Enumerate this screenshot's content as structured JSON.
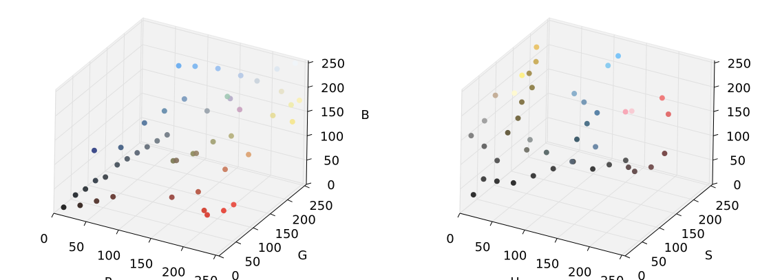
{
  "chart_data": [
    {
      "type": "scatter3d",
      "xlabel": "R",
      "ylabel": "G",
      "zlabel": "B",
      "xlim": [
        0,
        255
      ],
      "ylim": [
        0,
        255
      ],
      "zlim": [
        0,
        255
      ],
      "xticks": [
        0,
        50,
        100,
        150,
        200,
        250
      ],
      "yticks": [
        0,
        50,
        100,
        150,
        200,
        250
      ],
      "zticks": [
        0,
        50,
        100,
        150,
        200,
        250
      ],
      "grid": true,
      "x": [
        10,
        20,
        30,
        40,
        50,
        60,
        70,
        80,
        90,
        100,
        30,
        50,
        70,
        60,
        80,
        100,
        120,
        40,
        120,
        140,
        160,
        180,
        150,
        130,
        110,
        150,
        200,
        210,
        230,
        240,
        180,
        150,
        200,
        220,
        220,
        240,
        250,
        245,
        230,
        200,
        180,
        150,
        120,
        100,
        240,
        220,
        180,
        200,
        160
      ],
      "y": [
        10,
        25,
        35,
        45,
        55,
        70,
        80,
        90,
        100,
        110,
        20,
        30,
        40,
        80,
        110,
        130,
        150,
        40,
        120,
        140,
        160,
        175,
        130,
        110,
        120,
        160,
        60,
        50,
        60,
        70,
        80,
        60,
        120,
        150,
        220,
        235,
        240,
        230,
        225,
        210,
        200,
        190,
        180,
        170,
        245,
        230,
        170,
        160,
        200
      ],
      "z": [
        10,
        30,
        40,
        55,
        60,
        80,
        90,
        100,
        110,
        120,
        15,
        25,
        35,
        110,
        150,
        170,
        190,
        120,
        80,
        90,
        110,
        120,
        100,
        90,
        130,
        170,
        40,
        40,
        50,
        60,
        60,
        50,
        90,
        110,
        150,
        170,
        180,
        140,
        200,
        220,
        230,
        240,
        240,
        240,
        250,
        240,
        200,
        190,
        180
      ],
      "colors": [
        "#111111",
        "#1a1f26",
        "#232a30",
        "#2b3540",
        "#353c42",
        "#3f4a55",
        "#4a5560",
        "#556070",
        "#606a75",
        "#6a7580",
        "#2a1a14",
        "#4a2a22",
        "#5e3028",
        "#3d5a80",
        "#4d7099",
        "#6088aa",
        "#7898bb",
        "#2a3a80",
        "#7a7850",
        "#8c8a5a",
        "#a09e70",
        "#b4ae7a",
        "#968266",
        "#826e5a",
        "#6e7882",
        "#96a0aa",
        "#d03828",
        "#d8362a",
        "#e43c30",
        "#e8463a",
        "#b4503c",
        "#96403a",
        "#c8785a",
        "#dca06e",
        "#e6dc96",
        "#f0ebaa",
        "#faf0b4",
        "#f5e68c",
        "#e6e1c8",
        "#c8d2dc",
        "#b4c8e6",
        "#96bef0",
        "#78b4f0",
        "#64aaf0",
        "#f0f5fa",
        "#dce6f0",
        "#b4aac8",
        "#c8a0be",
        "#a0c8b4"
      ]
    },
    {
      "type": "scatter3d",
      "xlabel": "H",
      "ylabel": "S",
      "xlim": [
        0,
        255
      ],
      "ylim": [
        0,
        255
      ],
      "zlim": [
        0,
        255
      ],
      "xticks": [
        0,
        50,
        100,
        150,
        200,
        250
      ],
      "yticks": [
        0,
        50,
        100,
        150,
        200,
        250
      ],
      "zticks": [
        0,
        50,
        100,
        150,
        200,
        250
      ],
      "grid": true,
      "x": [
        10,
        20,
        30,
        15,
        5,
        20,
        25,
        40,
        60,
        80,
        100,
        120,
        140,
        160,
        180,
        200,
        220,
        230,
        30,
        35,
        30,
        35,
        25,
        30,
        20,
        40,
        60,
        100,
        110,
        120,
        110,
        100,
        120,
        125,
        200,
        230,
        220,
        240,
        10,
        90,
        70,
        80,
        140,
        160
      ],
      "y": [
        20,
        30,
        50,
        40,
        20,
        30,
        60,
        80,
        100,
        120,
        140,
        160,
        170,
        180,
        150,
        130,
        140,
        160,
        80,
        100,
        120,
        140,
        150,
        160,
        180,
        100,
        40,
        150,
        160,
        170,
        150,
        140,
        200,
        220,
        100,
        150,
        80,
        150,
        80,
        80,
        60,
        50,
        60,
        90
      ],
      "z": [
        30,
        60,
        90,
        120,
        150,
        180,
        40,
        30,
        40,
        50,
        60,
        40,
        50,
        60,
        70,
        80,
        90,
        110,
        130,
        150,
        170,
        190,
        210,
        230,
        245,
        240,
        245,
        100,
        130,
        150,
        180,
        200,
        230,
        240,
        220,
        230,
        240,
        200,
        200,
        110,
        120,
        150,
        120,
        140
      ],
      "colors": [
        "#1a1a1a",
        "#333333",
        "#4a4a4a",
        "#5a5a5a",
        "#777777",
        "#999999",
        "#222222",
        "#1c1c1c",
        "#2a2a2a",
        "#333333",
        "#3a3a3a",
        "#2a2a2a",
        "#404040",
        "#4a4a4a",
        "#554040",
        "#5a4040",
        "#6a4545",
        "#6e3a3a",
        "#5a5030",
        "#6a5e35",
        "#7a6a3a",
        "#8a7a40",
        "#9e8845",
        "#c8a850",
        "#e8c060",
        "#fff080",
        "#fffacd",
        "#2e4e5e",
        "#3e6680",
        "#4a78a0",
        "#6a90b0",
        "#80a8c8",
        "#80c8f0",
        "#70c0f8",
        "#f8a0b0",
        "#f07070",
        "#f8c8d0",
        "#e06060",
        "#c0a890",
        "#506060",
        "#6a6a60",
        "#8a9090",
        "#5a6878",
        "#6080a0"
      ]
    }
  ]
}
